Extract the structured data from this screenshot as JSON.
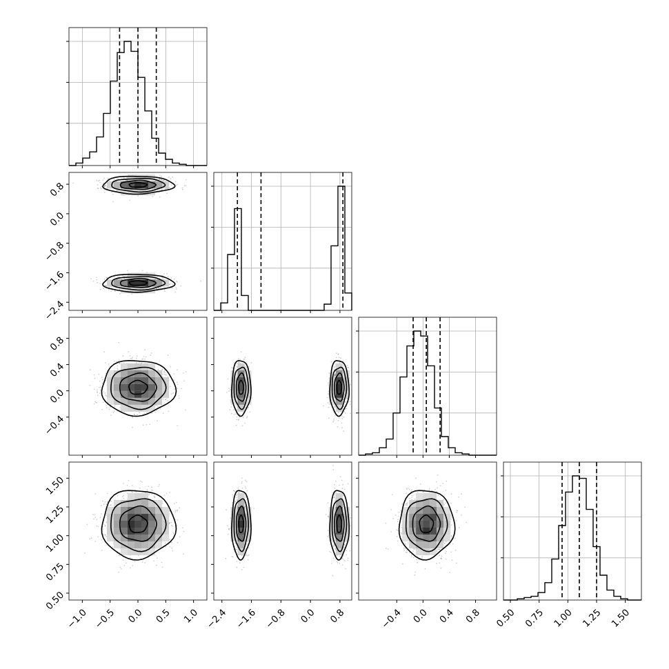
{
  "chart_data": {
    "type": "corner",
    "grid": true,
    "dim": 4,
    "axis_ranges": [
      [
        -1.24,
        1.24
      ],
      [
        -2.62,
        1.12
      ],
      [
        -0.98,
        1.12
      ],
      [
        0.44,
        1.64
      ]
    ],
    "ticks": [
      {
        "values": [
          -1.0,
          -0.5,
          0.0,
          0.5,
          1.0
        ],
        "labels": [
          "−1.0",
          "−0.5",
          "0.0",
          "0.5",
          "1.0"
        ]
      },
      {
        "values": [
          -2.4,
          -1.6,
          -0.8,
          0.0,
          0.8
        ],
        "labels": [
          "−2.4",
          "−1.6",
          "−0.8",
          "0.0",
          "0.8"
        ]
      },
      {
        "values": [
          -0.4,
          0.0,
          0.4,
          0.8
        ],
        "labels": [
          "−0.4",
          "0.0",
          "0.4",
          "0.8"
        ]
      },
      {
        "values": [
          0.5,
          0.75,
          1.0,
          1.25,
          1.5
        ],
        "labels": [
          "0.50",
          "0.75",
          "1.00",
          "1.25",
          "1.50"
        ]
      }
    ],
    "histograms": [
      {
        "param": 0,
        "bin_start": -1.24,
        "bin_width": 0.124,
        "counts": [
          0,
          2,
          6,
          11,
          23,
          42,
          68,
          91,
          100,
          92,
          71,
          44,
          22,
          10,
          5,
          2,
          1,
          0,
          0,
          0
        ],
        "quantiles": [
          -0.33,
          0.0,
          0.33
        ]
      },
      {
        "param": 1,
        "bin_start": -2.62,
        "bin_width": 0.187,
        "counts": [
          0,
          6,
          45,
          82,
          12,
          0,
          0,
          0,
          0,
          0,
          0,
          0,
          0,
          0,
          0,
          0,
          5,
          52,
          100,
          14
        ],
        "quantiles": [
          -1.98,
          -1.34,
          0.88
        ]
      },
      {
        "param": 2,
        "bin_start": -0.98,
        "bin_width": 0.105,
        "counts": [
          0,
          1,
          2,
          6,
          13,
          34,
          63,
          88,
          100,
          96,
          72,
          38,
          15,
          6,
          2,
          1,
          0,
          0,
          0,
          0
        ],
        "quantiles": [
          -0.15,
          0.05,
          0.26
        ]
      },
      {
        "param": 3,
        "bin_start": 0.44,
        "bin_width": 0.06,
        "counts": [
          0,
          0,
          1,
          2,
          3,
          6,
          14,
          33,
          60,
          87,
          100,
          98,
          73,
          43,
          20,
          8,
          3,
          1,
          0,
          0
        ],
        "quantiles": [
          0.95,
          1.1,
          1.25
        ]
      }
    ],
    "joint_2d": [
      {
        "x": 0,
        "y": 1,
        "modes": [
          {
            "mx": 0.0,
            "my": 0.78,
            "sx": 0.32,
            "sy": 0.12
          },
          {
            "mx": 0.0,
            "my": -1.88,
            "sx": 0.32,
            "sy": 0.12
          }
        ]
      },
      {
        "x": 0,
        "y": 2,
        "modes": [
          {
            "mx": 0.0,
            "my": 0.05,
            "sx": 0.33,
            "sy": 0.21
          }
        ]
      },
      {
        "x": 1,
        "y": 2,
        "modes": [
          {
            "mx": -1.88,
            "my": 0.05,
            "sx": 0.13,
            "sy": 0.21
          },
          {
            "mx": 0.78,
            "my": 0.05,
            "sx": 0.13,
            "sy": 0.21
          }
        ]
      },
      {
        "x": 0,
        "y": 3,
        "modes": [
          {
            "mx": 0.0,
            "my": 1.1,
            "sx": 0.33,
            "sy": 0.15
          }
        ]
      },
      {
        "x": 1,
        "y": 3,
        "modes": [
          {
            "mx": -1.88,
            "my": 1.1,
            "sx": 0.13,
            "sy": 0.15
          },
          {
            "mx": 0.78,
            "my": 1.1,
            "sx": 0.13,
            "sy": 0.15
          }
        ]
      },
      {
        "x": 2,
        "y": 3,
        "modes": [
          {
            "mx": 0.05,
            "my": 1.1,
            "sx": 0.21,
            "sy": 0.15
          }
        ]
      }
    ]
  }
}
